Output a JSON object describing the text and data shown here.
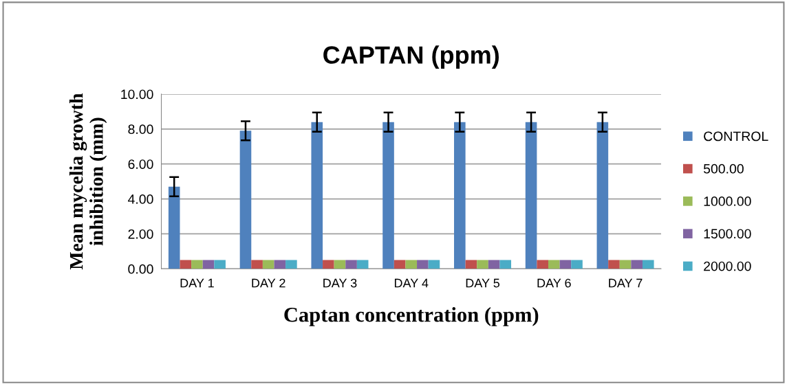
{
  "chart_data": {
    "type": "bar",
    "title": "CAPTAN (ppm)",
    "xlabel": "Captan concentration (ppm)",
    "ylabel": "Mean mycelia growth\ninhibition (mm)",
    "categories": [
      "DAY 1",
      "DAY 2",
      "DAY 3",
      "DAY 4",
      "DAY 5",
      "DAY 6",
      "DAY 7"
    ],
    "series": [
      {
        "name": "CONTROL",
        "color": "#4f81bd",
        "values": [
          4.7,
          7.9,
          8.4,
          8.4,
          8.4,
          8.4,
          8.4
        ],
        "errors": [
          0.55,
          0.55,
          0.55,
          0.55,
          0.55,
          0.55,
          0.55
        ]
      },
      {
        "name": "500.00",
        "color": "#c0504d",
        "values": [
          0.5,
          0.5,
          0.5,
          0.5,
          0.5,
          0.5,
          0.5
        ]
      },
      {
        "name": "1000.00",
        "color": "#9bbb59",
        "values": [
          0.5,
          0.5,
          0.5,
          0.5,
          0.5,
          0.5,
          0.5
        ]
      },
      {
        "name": "1500.00",
        "color": "#8064a2",
        "values": [
          0.5,
          0.5,
          0.5,
          0.5,
          0.5,
          0.5,
          0.5
        ]
      },
      {
        "name": "2000.00",
        "color": "#4bacc6",
        "values": [
          0.5,
          0.5,
          0.5,
          0.5,
          0.5,
          0.5,
          0.5
        ]
      }
    ],
    "ylim": [
      0,
      10
    ],
    "yticks": [
      {
        "value": 0,
        "label": "0.00"
      },
      {
        "value": 2,
        "label": "2.00"
      },
      {
        "value": 4,
        "label": "4.00"
      },
      {
        "value": 6,
        "label": "6.00"
      },
      {
        "value": 8,
        "label": "8.00"
      },
      {
        "value": 10,
        "label": "10.00"
      }
    ],
    "grid": "y",
    "legend": "right"
  }
}
